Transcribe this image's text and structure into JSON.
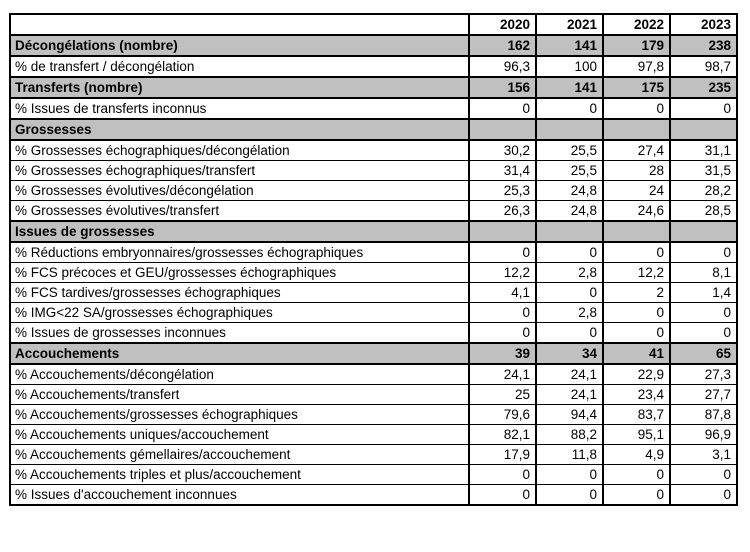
{
  "table": {
    "columns": [
      "",
      "2020",
      "2021",
      "2022",
      "2023"
    ],
    "rows": [
      {
        "type": "section",
        "label": "Décongélations (nombre)",
        "values": [
          "162",
          "141",
          "179",
          "238"
        ]
      },
      {
        "type": "data",
        "label": "% de transfert / décongélation",
        "values": [
          "96,3",
          "100",
          "97,8",
          "98,7"
        ]
      },
      {
        "type": "section",
        "label": "Transferts (nombre)",
        "values": [
          "156",
          "141",
          "175",
          "235"
        ]
      },
      {
        "type": "data",
        "label": "% Issues de transferts inconnus",
        "values": [
          "0",
          "0",
          "0",
          "0"
        ]
      },
      {
        "type": "section",
        "label": "Grossesses",
        "values": [
          "",
          "",
          "",
          ""
        ]
      },
      {
        "type": "data",
        "label": "% Grossesses échographiques/décongélation",
        "values": [
          "30,2",
          "25,5",
          "27,4",
          "31,1"
        ]
      },
      {
        "type": "data",
        "label": "% Grossesses échographiques/transfert",
        "values": [
          "31,4",
          "25,5",
          "28",
          "31,5"
        ]
      },
      {
        "type": "data",
        "label": "% Grossesses évolutives/décongélation",
        "values": [
          "25,3",
          "24,8",
          "24",
          "28,2"
        ]
      },
      {
        "type": "data",
        "label": "% Grossesses évolutives/transfert",
        "values": [
          "26,3",
          "24,8",
          "24,6",
          "28,5"
        ]
      },
      {
        "type": "section",
        "label": "Issues de grossesses",
        "values": [
          "",
          "",
          "",
          ""
        ]
      },
      {
        "type": "data",
        "label": "% Réductions embryonnaires/grossesses échographiques",
        "values": [
          "0",
          "0",
          "0",
          "0"
        ]
      },
      {
        "type": "data",
        "label": "% FCS précoces et GEU/grossesses échographiques",
        "values": [
          "12,2",
          "2,8",
          "12,2",
          "8,1"
        ]
      },
      {
        "type": "data",
        "label": "% FCS tardives/grossesses échographiques",
        "values": [
          "4,1",
          "0",
          "2",
          "1,4"
        ]
      },
      {
        "type": "data",
        "label": "% IMG<22 SA/grossesses échographiques",
        "values": [
          "0",
          "2,8",
          "0",
          "0"
        ]
      },
      {
        "type": "data",
        "label": "% Issues de grossesses inconnues",
        "values": [
          "0",
          "0",
          "0",
          "0"
        ]
      },
      {
        "type": "section",
        "label": "Accouchements",
        "values": [
          "39",
          "34",
          "41",
          "65"
        ]
      },
      {
        "type": "data",
        "label": "% Accouchements/décongélation",
        "values": [
          "24,1",
          "24,1",
          "22,9",
          "27,3"
        ]
      },
      {
        "type": "data",
        "label": "% Accouchements/transfert",
        "values": [
          "25",
          "24,1",
          "23,4",
          "27,7"
        ]
      },
      {
        "type": "data",
        "label": "% Accouchements/grossesses échographiques",
        "values": [
          "79,6",
          "94,4",
          "83,7",
          "87,8"
        ]
      },
      {
        "type": "data",
        "label": "% Accouchements uniques/accouchement",
        "values": [
          "82,1",
          "88,2",
          "95,1",
          "96,9"
        ]
      },
      {
        "type": "data",
        "label": "% Accouchements gémellaires/accouchement",
        "values": [
          "17,9",
          "11,8",
          "4,9",
          "3,1"
        ]
      },
      {
        "type": "data",
        "label": "% Accouchements triples et plus/accouchement",
        "values": [
          "0",
          "0",
          "0",
          "0"
        ]
      },
      {
        "type": "data",
        "label": "% Issues d'accouchement inconnues",
        "values": [
          "0",
          "0",
          "0",
          "0"
        ]
      }
    ],
    "colors": {
      "section_background": "#c0c0c0",
      "border": "#000000",
      "text": "#000000",
      "page_background": "#ffffff"
    }
  }
}
